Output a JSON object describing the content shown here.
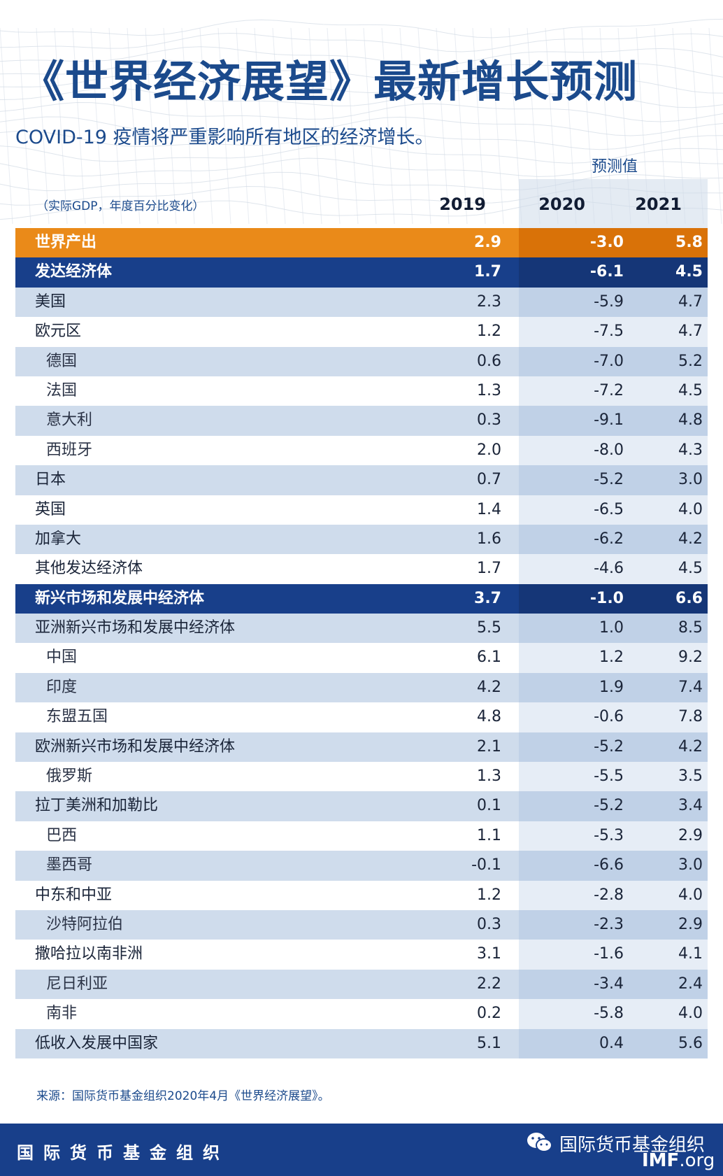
{
  "header": {
    "title": "《世界经济展望》最新增长预测",
    "subtitle": "COVID-19 疫情将严重影响所有地区的经济增长。",
    "forecast_label": "预测值",
    "units": "（实际GDP，年度百分比变化）",
    "years": [
      "2019",
      "2020",
      "2021"
    ]
  },
  "colors": {
    "brand_blue": "#183f8a",
    "world_orange": "#ea8a19",
    "light_row": "#cfdcec",
    "forecast_band": "#c0d1e7"
  },
  "rows": [
    {
      "name": "世界产出",
      "v2019": "2.9",
      "v2020": "-3.0",
      "v2021": "5.8",
      "style": "world"
    },
    {
      "name": "发达经济体",
      "v2019": "1.7",
      "v2020": "-6.1",
      "v2021": "4.5",
      "style": "group"
    },
    {
      "name": "美国",
      "v2019": "2.3",
      "v2020": "-5.9",
      "v2021": "4.7",
      "style": "light"
    },
    {
      "name": "欧元区",
      "v2019": "1.2",
      "v2020": "-7.5",
      "v2021": "4.7",
      "style": "white"
    },
    {
      "name": "德国",
      "v2019": "0.6",
      "v2020": "-7.0",
      "v2021": "5.2",
      "style": "light sub"
    },
    {
      "name": "法国",
      "v2019": "1.3",
      "v2020": "-7.2",
      "v2021": "4.5",
      "style": "white sub"
    },
    {
      "name": "意大利",
      "v2019": "0.3",
      "v2020": "-9.1",
      "v2021": "4.8",
      "style": "light sub"
    },
    {
      "name": "西班牙",
      "v2019": "2.0",
      "v2020": "-8.0",
      "v2021": "4.3",
      "style": "white sub"
    },
    {
      "name": "日本",
      "v2019": "0.7",
      "v2020": "-5.2",
      "v2021": "3.0",
      "style": "light"
    },
    {
      "name": "英国",
      "v2019": "1.4",
      "v2020": "-6.5",
      "v2021": "4.0",
      "style": "white"
    },
    {
      "name": "加拿大",
      "v2019": "1.6",
      "v2020": "-6.2",
      "v2021": "4.2",
      "style": "light"
    },
    {
      "name": "其他发达经济体",
      "v2019": "1.7",
      "v2020": "-4.6",
      "v2021": "4.5",
      "style": "white"
    },
    {
      "name": "新兴市场和发展中经济体",
      "v2019": "3.7",
      "v2020": "-1.0",
      "v2021": "6.6",
      "style": "group"
    },
    {
      "name": "亚洲新兴市场和发展中经济体",
      "v2019": "5.5",
      "v2020": "1.0",
      "v2021": "8.5",
      "style": "light"
    },
    {
      "name": "中国",
      "v2019": "6.1",
      "v2020": "1.2",
      "v2021": "9.2",
      "style": "white sub"
    },
    {
      "name": "印度",
      "v2019": "4.2",
      "v2020": "1.9",
      "v2021": "7.4",
      "style": "light sub"
    },
    {
      "name": "东盟五国",
      "v2019": "4.8",
      "v2020": "-0.6",
      "v2021": "7.8",
      "style": "white sub"
    },
    {
      "name": "欧洲新兴市场和发展中经济体",
      "v2019": "2.1",
      "v2020": "-5.2",
      "v2021": "4.2",
      "style": "light"
    },
    {
      "name": "俄罗斯",
      "v2019": "1.3",
      "v2020": "-5.5",
      "v2021": "3.5",
      "style": "white sub"
    },
    {
      "name": "拉丁美洲和加勒比",
      "v2019": "0.1",
      "v2020": "-5.2",
      "v2021": "3.4",
      "style": "light"
    },
    {
      "name": "巴西",
      "v2019": "1.1",
      "v2020": "-5.3",
      "v2021": "2.9",
      "style": "white sub"
    },
    {
      "name": "墨西哥",
      "v2019": "-0.1",
      "v2020": "-6.6",
      "v2021": "3.0",
      "style": "light sub"
    },
    {
      "name": "中东和中亚",
      "v2019": "1.2",
      "v2020": "-2.8",
      "v2021": "4.0",
      "style": "white"
    },
    {
      "name": "沙特阿拉伯",
      "v2019": "0.3",
      "v2020": "-2.3",
      "v2021": "2.9",
      "style": "light sub"
    },
    {
      "name": "撒哈拉以南非洲",
      "v2019": "3.1",
      "v2020": "-1.6",
      "v2021": "4.1",
      "style": "white"
    },
    {
      "name": "尼日利亚",
      "v2019": "2.2",
      "v2020": "-3.4",
      "v2021": "2.4",
      "style": "light sub"
    },
    {
      "name": "南非",
      "v2019": "0.2",
      "v2020": "-5.8",
      "v2021": "4.0",
      "style": "white sub"
    },
    {
      "name": "低收入发展中国家",
      "v2019": "5.1",
      "v2020": "0.4",
      "v2021": "5.6",
      "style": "light"
    }
  ],
  "source": "来源：国际货币基金组织2020年4月《世界经济展望》。",
  "footer": {
    "org": "国际货币基金组织",
    "wechat_icon": "wechat-icon",
    "account": "国际货币基金组织",
    "site_bold": "IMF",
    "site_rest": ".org"
  }
}
